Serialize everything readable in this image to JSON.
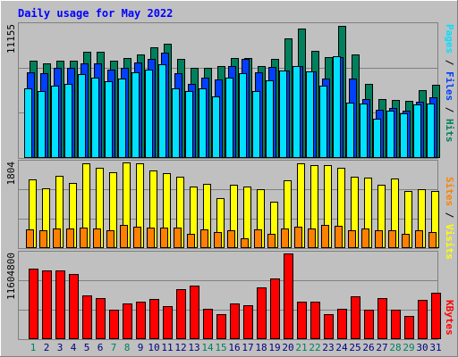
{
  "colors": {
    "background": "#c0c0c0",
    "title": "#0000ff",
    "hits": "#00805c",
    "files": "#0040ff",
    "pages": "#00e0ff",
    "visits": "#ffff00",
    "sites": "#ff8000",
    "kbytes": "#ff0000",
    "weekend": "#00805c",
    "weekday": "#000080"
  },
  "chart_data": {
    "title": "Daily usage for May 2022",
    "type": "bar",
    "days": [
      "1",
      "2",
      "3",
      "4",
      "5",
      "6",
      "7",
      "8",
      "9",
      "10",
      "11",
      "12",
      "13",
      "14",
      "15",
      "16",
      "17",
      "18",
      "19",
      "20",
      "21",
      "22",
      "23",
      "24",
      "25",
      "26",
      "27",
      "28",
      "29",
      "30",
      "31"
    ],
    "weekend_days": [
      "1",
      "7",
      "8",
      "14",
      "15",
      "21",
      "22",
      "28",
      "29"
    ],
    "panels": [
      {
        "name": "hits",
        "max_label": "11155",
        "ymax": 11155,
        "label_parts": [
          "Pages",
          "/",
          "Files",
          "/",
          "Hits"
        ],
        "series": [
          {
            "name": "Hits",
            "values": [
              8160,
              7950,
              8160,
              8160,
              8890,
              8890,
              8160,
              8380,
              8670,
              9250,
              9620,
              8310,
              7580,
              7580,
              7730,
              8380,
              8380,
              7730,
              8310,
              10040,
              10830,
              8960,
              8450,
              11080,
              8670,
              6210,
              4920,
              4850,
              4780,
              5710,
              6140
            ]
          },
          {
            "name": "Files",
            "values": [
              7220,
              7080,
              7590,
              7590,
              7950,
              7950,
              7440,
              7590,
              8020,
              8310,
              8820,
              7080,
              6210,
              6720,
              6570,
              7730,
              8310,
              7150,
              7660,
              7370,
              7720,
              7290,
              6650,
              8450,
              6650,
              4920,
              4050,
              4200,
              3980,
              4710,
              5060
            ]
          },
          {
            "name": "Pages",
            "values": [
              5860,
              5640,
              6070,
              6210,
              7010,
              6720,
              6430,
              6650,
              7220,
              7440,
              7870,
              5860,
              5640,
              5860,
              5130,
              6720,
              7080,
              5640,
              6500,
              7370,
              7720,
              7290,
              6060,
              8520,
              4630,
              4560,
              3330,
              3980,
              3760,
              4490,
              4560
            ]
          }
        ]
      },
      {
        "name": "visits",
        "max_label": "1804",
        "ymax": 1804,
        "label_parts": [
          "Sites",
          "/",
          "Visits"
        ],
        "series": [
          {
            "name": "Visits",
            "values": [
              1450,
              1260,
              1520,
              1380,
              1780,
              1700,
              1600,
              1800,
              1790,
              1630,
              1580,
              1500,
              1300,
              1350,
              1050,
              1340,
              1290,
              1240,
              970,
              1420,
              1790,
              1740,
              1740,
              1700,
              1500,
              1480,
              1340,
              1460,
              1200,
              1240,
              1200
            ]
          },
          {
            "name": "Sites",
            "values": [
              400,
              380,
              420,
              420,
              430,
              420,
              380,
              480,
              460,
              440,
              440,
              440,
              310,
              400,
              340,
              380,
              200,
              400,
              310,
              410,
              450,
              420,
              480,
              470,
              380,
              410,
              380,
              380,
              310,
              380,
              340
            ]
          }
        ]
      },
      {
        "name": "kbytes",
        "max_label": "11604800",
        "ymax": 11604800,
        "label_parts": [
          "KBytes"
        ],
        "series": [
          {
            "name": "KBytes",
            "values": [
              9490000,
              9330000,
              9330000,
              8850000,
              5920000,
              5600000,
              3980000,
              4790000,
              5110000,
              5440000,
              4460000,
              6730000,
              7220000,
              4140000,
              3330000,
              4790000,
              4620000,
              7050000,
              8200000,
              11600000,
              5110000,
              5110000,
              3330000,
              4140000,
              5760000,
              3980000,
              5600000,
              3980000,
              3160000,
              5270000,
              6240000
            ]
          }
        ]
      }
    ]
  }
}
